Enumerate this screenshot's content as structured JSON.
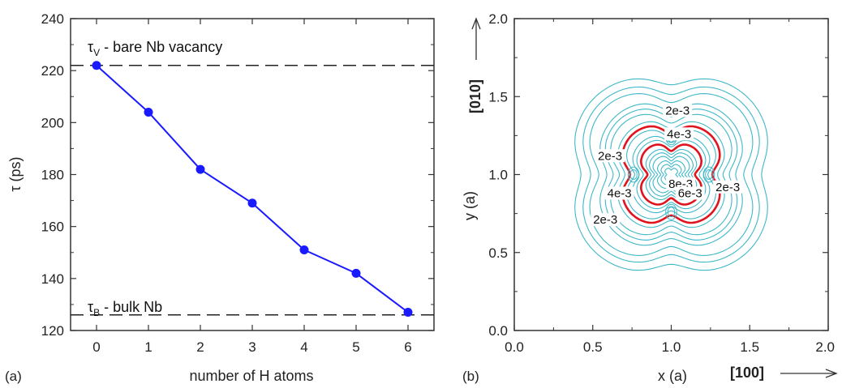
{
  "chart_data": [
    {
      "type": "line",
      "panel_label": "(a)",
      "x": [
        0,
        1,
        2,
        3,
        4,
        5,
        6
      ],
      "series": [
        {
          "values": [
            222,
            204,
            182,
            169,
            151,
            142,
            127
          ],
          "color": "#1a1aff"
        }
      ],
      "xlabel": "number of H atoms",
      "ylabel": "τ (ps)",
      "xlim": [
        -0.5,
        6.5
      ],
      "ylim": [
        120,
        240
      ],
      "xticks": [
        "0",
        "1",
        "2",
        "3",
        "4",
        "5",
        "6"
      ],
      "yticks": [
        "120",
        "140",
        "160",
        "180",
        "200",
        "220",
        "240"
      ],
      "reference_lines": [
        {
          "y": 222,
          "symbol": "τ",
          "subscript": "V",
          "label": " - bare Nb vacancy"
        },
        {
          "y": 126,
          "symbol": "τ",
          "subscript": "B",
          "label": " - bulk Nb"
        }
      ]
    },
    {
      "type": "contour",
      "panel_label": "(b)",
      "xlabel": "x (a)",
      "ylabel": "y (a)",
      "xlim": [
        0,
        2
      ],
      "ylim": [
        0,
        2
      ],
      "xticks": [
        "0.0",
        "0.5",
        "1.0",
        "1.5",
        "2.0"
      ],
      "yticks": [
        "0.0",
        "0.5",
        "1.0",
        "1.5",
        "2.0"
      ],
      "x_direction_label": "[100]",
      "y_direction_label": "[010]",
      "line_color": "#3fb8c8",
      "highlight_color": "#e0141e",
      "contour_labels": [
        {
          "text": "2e-3",
          "x": 1.04,
          "y": 1.39
        },
        {
          "text": "4e-3",
          "x": 1.05,
          "y": 1.24
        },
        {
          "text": "2e-3",
          "x": 0.61,
          "y": 1.1
        },
        {
          "text": "8e-3",
          "x": 1.06,
          "y": 0.92
        },
        {
          "text": "6e-3",
          "x": 1.12,
          "y": 0.86
        },
        {
          "text": "2e-3",
          "x": 1.36,
          "y": 0.9
        },
        {
          "text": "4e-3",
          "x": 0.67,
          "y": 0.86
        },
        {
          "text": "2e-3",
          "x": 0.58,
          "y": 0.69
        }
      ]
    }
  ]
}
